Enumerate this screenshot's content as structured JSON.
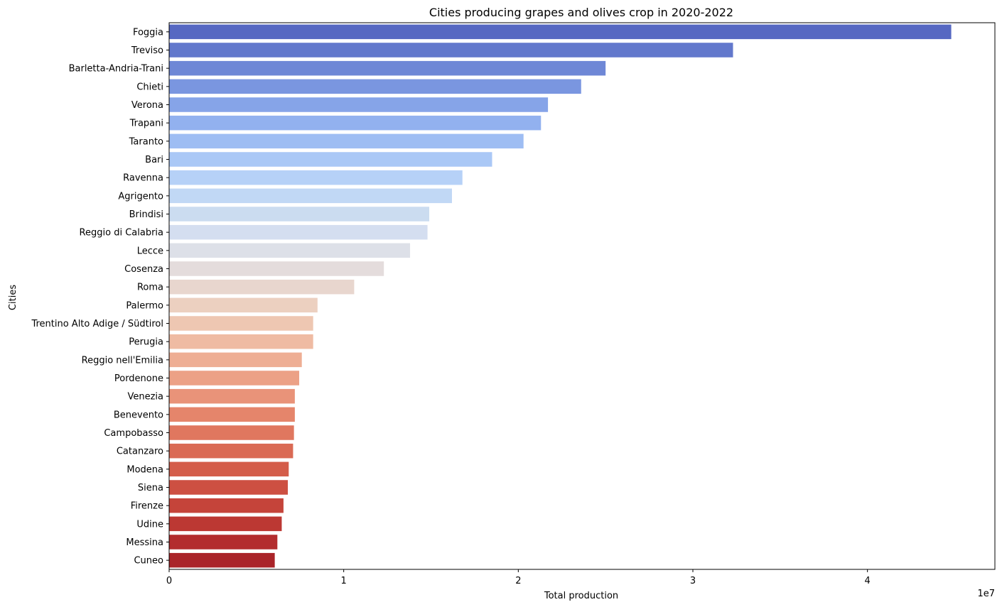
{
  "chart_data": {
    "type": "bar",
    "orientation": "horizontal",
    "title": "Cities producing grapes and olives crop in 2020-2022",
    "xlabel": "Total production",
    "ylabel": "Cities",
    "x_scale_label": "1e7",
    "xlim": [
      0,
      4.73
    ],
    "x_ticks": [
      "0",
      "1",
      "2",
      "3",
      "4"
    ],
    "x_tick_values": [
      0,
      1,
      2,
      3,
      4
    ],
    "grid": false,
    "palette": "coolwarm",
    "categories": [
      "Foggia",
      "Treviso",
      "Barletta-Andria-Trani",
      "Chieti",
      "Verona",
      "Trapani",
      "Taranto",
      "Bari",
      "Ravenna",
      "Agrigento",
      "Brindisi",
      "Reggio di Calabria",
      "Lecce",
      "Cosenza",
      "Roma",
      "Palermo",
      "Trentino Alto Adige / Südtirol",
      "Perugia",
      "Reggio nell'Emilia",
      "Pordenone",
      "Venezia",
      "Benevento",
      "Campobasso",
      "Catanzaro",
      "Modena",
      "Siena",
      "Firenze",
      "Udine",
      "Messina",
      "Cuneo"
    ],
    "values": [
      4.48,
      3.23,
      2.5,
      2.36,
      2.17,
      2.13,
      2.03,
      1.85,
      1.68,
      1.62,
      1.49,
      1.48,
      1.38,
      1.23,
      1.06,
      0.85,
      0.825,
      0.825,
      0.76,
      0.745,
      0.72,
      0.72,
      0.715,
      0.71,
      0.685,
      0.68,
      0.655,
      0.645,
      0.62,
      0.605
    ],
    "colors": [
      "#5668c2",
      "#6278cc",
      "#6e87d6",
      "#7a96e0",
      "#86a4e8",
      "#92b1ef",
      "#9ebdf3",
      "#aac8f6",
      "#b6d1f7",
      "#c1d8f5",
      "#cbdcf0",
      "#d4def0",
      "#dde0e8",
      "#e4dcdc",
      "#e8d6ce",
      "#ecd0c0",
      "#eec7b2",
      "#efbba3",
      "#eeae94",
      "#eca186",
      "#e99379",
      "#e5856b",
      "#e0775f",
      "#da6a54",
      "#d45d4a",
      "#cd5042",
      "#c5443a",
      "#bc3833",
      "#b32d2e",
      "#aa2429"
    ]
  }
}
